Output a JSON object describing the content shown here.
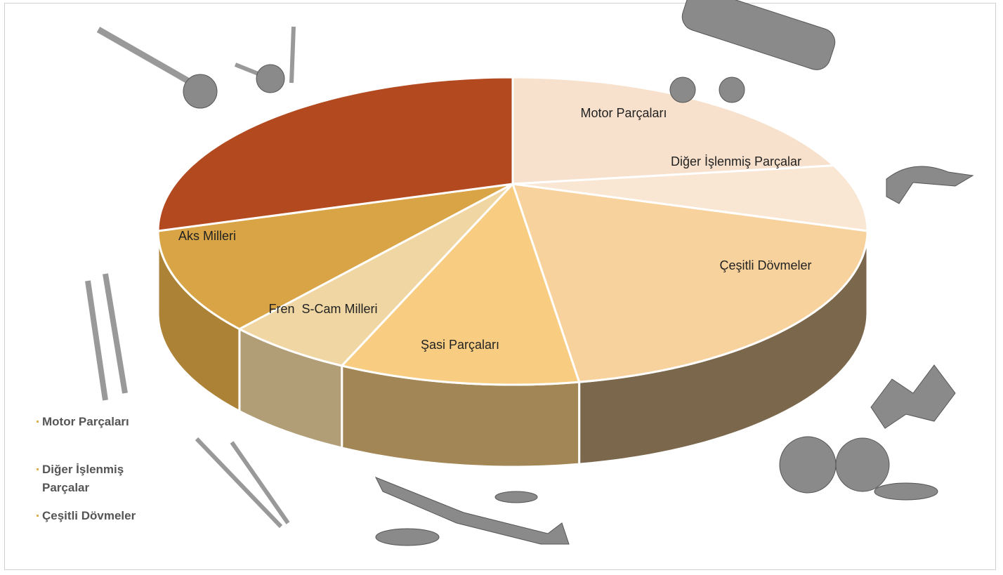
{
  "chart_data": {
    "type": "pie3d",
    "categories": [
      "Motor Parçaları",
      "Diğer İşlenmiş Parçalar",
      "Çeşitli Dövmeler",
      "Şasi Parçaları",
      "Fren  S-Cam Milleri",
      "Aks Milleri",
      null
    ],
    "values": [
      18,
      7,
      22,
      11,
      6,
      11,
      25
    ],
    "colors": [
      "#f7e1cc",
      "#f9e7d4",
      "#f8d29c",
      "#f8cd82",
      "#f0d6a2",
      "#d8a445",
      "#b3491f"
    ]
  }
}
